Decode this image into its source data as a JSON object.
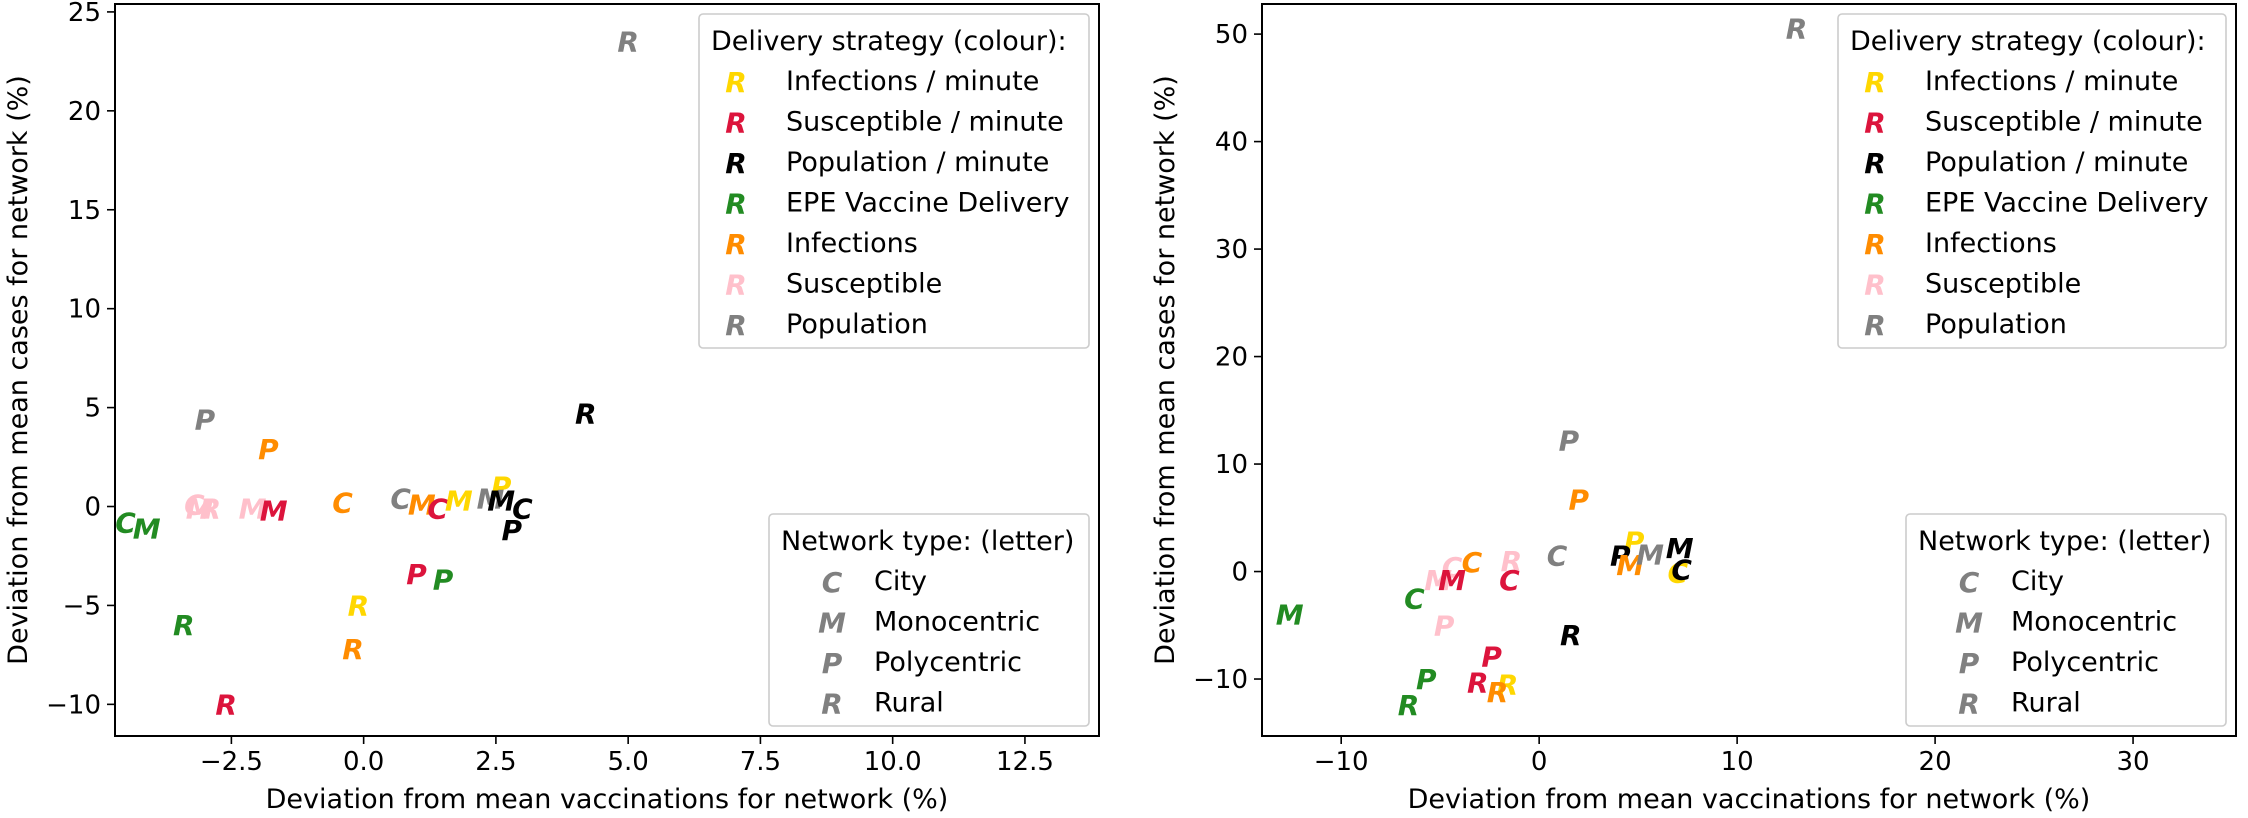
{
  "colors": {
    "Infections / minute": "#ffd700",
    "Susceptible / minute": "#dc143c",
    "Population / minute": "#000000",
    "EPE Vaccine Delivery": "#228b22",
    "Infections": "#ff8c00",
    "Susceptible": "#ffc0cb",
    "Population": "#808080"
  },
  "legend_strategy": {
    "title": "Delivery strategy (colour):",
    "marker_letter": "R",
    "items": [
      "Infections / minute",
      "Susceptible / minute",
      "Population / minute",
      "EPE Vaccine Delivery",
      "Infections",
      "Susceptible",
      "Population"
    ]
  },
  "legend_network": {
    "title": "Network type: (letter)",
    "color": "#808080",
    "items": [
      {
        "letter": "C",
        "label": "City"
      },
      {
        "letter": "M",
        "label": "Monocentric"
      },
      {
        "letter": "P",
        "label": "Polycentric"
      },
      {
        "letter": "R",
        "label": "Rural"
      }
    ]
  },
  "chart_data": [
    {
      "type": "scatter",
      "xlabel": "Deviation from mean vaccinations for network (%)",
      "ylabel": "Deviation from mean cases for network (%)",
      "xlim": [
        -4.7,
        13.9
      ],
      "ylim": [
        -11.6,
        25.4
      ],
      "xticks": [
        -2.5,
        0.0,
        2.5,
        5.0,
        7.5,
        10.0,
        12.5
      ],
      "xtick_labels": [
        "−2.5",
        "0.0",
        "2.5",
        "5.0",
        "7.5",
        "10.0",
        "12.5"
      ],
      "yticks": [
        -10,
        -5,
        0,
        5,
        10,
        15,
        20,
        25
      ],
      "ytick_labels": [
        "−10",
        "−5",
        "0",
        "5",
        "10",
        "15",
        "20",
        "25"
      ],
      "grid": false,
      "legend_positions": [
        "top-right",
        "bottom-right"
      ],
      "points": [
        {
          "letter": "R",
          "strategy": "Population",
          "x": 5.0,
          "y": 23.5
        },
        {
          "letter": "R",
          "strategy": "Population / minute",
          "x": 4.2,
          "y": 4.7
        },
        {
          "letter": "P",
          "strategy": "Population",
          "x": -3.0,
          "y": 4.4
        },
        {
          "letter": "P",
          "strategy": "Infections",
          "x": -1.8,
          "y": 2.9
        },
        {
          "letter": "C",
          "strategy": "EPE Vaccine Delivery",
          "x": -4.5,
          "y": -0.8
        },
        {
          "letter": "M",
          "strategy": "EPE Vaccine Delivery",
          "x": -4.1,
          "y": -1.1
        },
        {
          "letter": "C",
          "strategy": "Susceptible",
          "x": -3.2,
          "y": 0.1
        },
        {
          "letter": "M",
          "strategy": "Susceptible",
          "x": -3.1,
          "y": -0.1
        },
        {
          "letter": "R",
          "strategy": "Susceptible",
          "x": -2.9,
          "y": -0.1
        },
        {
          "letter": "M",
          "strategy": "Susceptible",
          "x": -2.1,
          "y": -0.1
        },
        {
          "letter": "M",
          "strategy": "Susceptible / minute",
          "x": -1.7,
          "y": -0.2
        },
        {
          "letter": "C",
          "strategy": "Infections",
          "x": -0.4,
          "y": 0.2
        },
        {
          "letter": "C",
          "strategy": "Population",
          "x": 0.7,
          "y": 0.4
        },
        {
          "letter": "M",
          "strategy": "Infections",
          "x": 1.1,
          "y": 0.1
        },
        {
          "letter": "C",
          "strategy": "Susceptible / minute",
          "x": 1.4,
          "y": -0.1
        },
        {
          "letter": "M",
          "strategy": "Infections / minute",
          "x": 1.8,
          "y": 0.3
        },
        {
          "letter": "M",
          "strategy": "Population",
          "x": 2.4,
          "y": 0.4
        },
        {
          "letter": "P",
          "strategy": "Infections / minute",
          "x": 2.6,
          "y": 1.0
        },
        {
          "letter": "M",
          "strategy": "Population / minute",
          "x": 2.6,
          "y": 0.3
        },
        {
          "letter": "C",
          "strategy": "Population / minute",
          "x": 3.0,
          "y": -0.1
        },
        {
          "letter": "P",
          "strategy": "Population / minute",
          "x": 2.8,
          "y": -1.2
        },
        {
          "letter": "P",
          "strategy": "Susceptible / minute",
          "x": 1.0,
          "y": -3.4
        },
        {
          "letter": "P",
          "strategy": "EPE Vaccine Delivery",
          "x": 1.5,
          "y": -3.7
        },
        {
          "letter": "R",
          "strategy": "Infections / minute",
          "x": -0.1,
          "y": -5.0
        },
        {
          "letter": "R",
          "strategy": "EPE Vaccine Delivery",
          "x": -3.4,
          "y": -6.0
        },
        {
          "letter": "R",
          "strategy": "Infections",
          "x": -0.2,
          "y": -7.2
        },
        {
          "letter": "R",
          "strategy": "Susceptible / minute",
          "x": -2.6,
          "y": -10.0
        }
      ]
    },
    {
      "type": "scatter",
      "xlabel": "Deviation from mean vaccinations for network (%)",
      "ylabel": "Deviation from mean cases for network (%)",
      "xlim": [
        -14.0,
        35.2
      ],
      "ylim": [
        -15.3,
        52.8
      ],
      "xticks": [
        -10,
        0,
        10,
        20,
        30
      ],
      "xtick_labels": [
        "−10",
        "0",
        "10",
        "20",
        "30"
      ],
      "yticks": [
        -10,
        0,
        10,
        20,
        30,
        40,
        50
      ],
      "ytick_labels": [
        "−10",
        "0",
        "10",
        "20",
        "30",
        "40",
        "50"
      ],
      "grid": false,
      "legend_positions": [
        "top-right",
        "bottom-right"
      ],
      "points": [
        {
          "letter": "R",
          "strategy": "Population",
          "x": 13.0,
          "y": 50.5
        },
        {
          "letter": "P",
          "strategy": "Population",
          "x": 1.5,
          "y": 12.2
        },
        {
          "letter": "P",
          "strategy": "Infections",
          "x": 2.0,
          "y": 6.7
        },
        {
          "letter": "M",
          "strategy": "EPE Vaccine Delivery",
          "x": -12.6,
          "y": -4.0
        },
        {
          "letter": "C",
          "strategy": "EPE Vaccine Delivery",
          "x": -6.3,
          "y": -2.5
        },
        {
          "letter": "C",
          "strategy": "Infections",
          "x": -3.4,
          "y": 0.9
        },
        {
          "letter": "C",
          "strategy": "Susceptible",
          "x": -4.4,
          "y": 0.4
        },
        {
          "letter": "M",
          "strategy": "Susceptible",
          "x": -5.1,
          "y": -0.8
        },
        {
          "letter": "M",
          "strategy": "Susceptible / minute",
          "x": -4.4,
          "y": -0.8
        },
        {
          "letter": "P",
          "strategy": "Susceptible",
          "x": -4.8,
          "y": -5.0
        },
        {
          "letter": "P",
          "strategy": "Infections / minute",
          "x": 4.8,
          "y": 2.8
        },
        {
          "letter": "R",
          "strategy": "Susceptible",
          "x": -1.4,
          "y": 1.0
        },
        {
          "letter": "C",
          "strategy": "Susceptible / minute",
          "x": -1.5,
          "y": -0.8
        },
        {
          "letter": "C",
          "strategy": "Population",
          "x": 0.9,
          "y": 1.5
        },
        {
          "letter": "P",
          "strategy": "Population / minute",
          "x": 4.1,
          "y": 1.5
        },
        {
          "letter": "M",
          "strategy": "Infections",
          "x": 4.6,
          "y": 0.6
        },
        {
          "letter": "M",
          "strategy": "Population",
          "x": 5.6,
          "y": 1.6
        },
        {
          "letter": "M",
          "strategy": "Population / minute",
          "x": 7.1,
          "y": 2.2
        },
        {
          "letter": "C",
          "strategy": "Infections / minute",
          "x": 7.0,
          "y": -0.1
        },
        {
          "letter": "C",
          "strategy": "Population / minute",
          "x": 7.2,
          "y": 0.2
        },
        {
          "letter": "R",
          "strategy": "Population / minute",
          "x": 1.6,
          "y": -5.9
        },
        {
          "letter": "P",
          "strategy": "Susceptible / minute",
          "x": -2.4,
          "y": -7.9
        },
        {
          "letter": "R",
          "strategy": "Susceptible / minute",
          "x": -3.1,
          "y": -10.3
        },
        {
          "letter": "R",
          "strategy": "Infections / minute",
          "x": -1.6,
          "y": -10.5
        },
        {
          "letter": "R",
          "strategy": "Infections",
          "x": -2.1,
          "y": -11.2
        },
        {
          "letter": "P",
          "strategy": "EPE Vaccine Delivery",
          "x": -5.7,
          "y": -10.0
        },
        {
          "letter": "R",
          "strategy": "EPE Vaccine Delivery",
          "x": -6.6,
          "y": -12.4
        }
      ]
    }
  ]
}
